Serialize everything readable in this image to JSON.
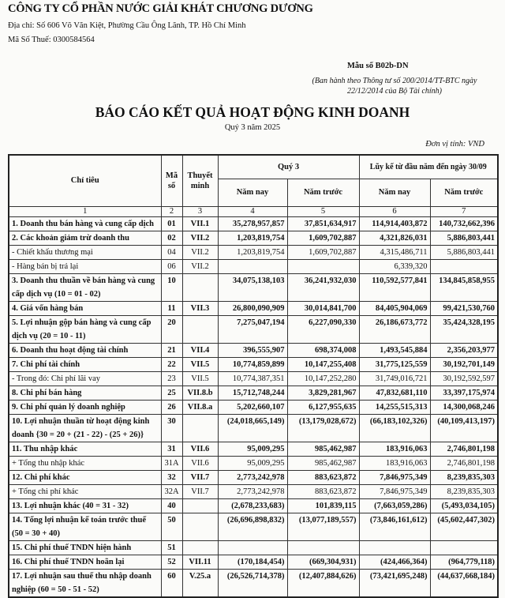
{
  "header": {
    "company": "CÔNG TY CỔ PHẦN NƯỚC GIẢI KHÁT CHƯƠNG DƯƠNG",
    "address": "Địa chỉ:  Số 606 Võ Văn Kiệt, Phường Cầu Ông Lãnh, TP. Hồ Chí Minh",
    "tax_code": "Mã Số Thuế: 0300584564",
    "form_no": "Mẫu số B02b-DN",
    "circular_line1": "(Ban hành theo Thông tư số 200/2014/TT-BTC ngày",
    "circular_line2": "22/12/2014 của Bộ Tài chính)",
    "title": "BÁO CÁO KẾT QUẢ HOẠT ĐỘNG KINH DOANH",
    "period": "Quý 3 năm 2025",
    "unit": "Đơn vị tính: VND"
  },
  "table": {
    "headers": {
      "item": "Chỉ tiêu",
      "code": "Mã số",
      "note": "Thuyết minh",
      "quarter": "Quý 3",
      "ytd": "Lũy kế từ đầu năm đến ngày 30/09",
      "this_year": "Năm nay",
      "last_year": "Năm trước"
    },
    "col_numbers": [
      "1",
      "2",
      "3",
      "4",
      "5",
      "6",
      "7"
    ],
    "rows": [
      {
        "item": "1. Doanh thu bán hàng và cung cấp dịch",
        "code": "01",
        "note": "VII.1",
        "q_now": "35,278,957,857",
        "q_prev": "37,851,634,917",
        "y_now": "114,914,403,872",
        "y_prev": "140,732,662,396",
        "bold": true
      },
      {
        "item": "2. Các khoản giảm trừ doanh thu",
        "code": "02",
        "note": "VII.2",
        "q_now": "1,203,819,754",
        "q_prev": "1,609,702,887",
        "y_now": "4,321,826,031",
        "y_prev": "5,886,803,441",
        "bold": true
      },
      {
        "item": "- Chiết khấu thương mại",
        "code": "04",
        "note": "VII.2",
        "q_now": "1,203,819,754",
        "q_prev": "1,609,702,887",
        "y_now": "4,315,486,711",
        "y_prev": "5,886,803,441",
        "bold": false
      },
      {
        "item": "- Hàng bán bị trả lại",
        "code": "06",
        "note": "VII.2",
        "q_now": "",
        "q_prev": "",
        "y_now": "6,339,320",
        "y_prev": "",
        "bold": false
      },
      {
        "item": "3. Doanh thu thuần về bán hàng và cung cấp dịch vụ (10 = 01 - 02)",
        "code": "10",
        "note": "",
        "q_now": "34,075,138,103",
        "q_prev": "36,241,932,030",
        "y_now": "110,592,577,841",
        "y_prev": "134,845,858,955",
        "bold": true
      },
      {
        "item": "4. Giá vốn hàng bán",
        "code": "11",
        "note": "VII.3",
        "q_now": "26,800,090,909",
        "q_prev": "30,014,841,700",
        "y_now": "84,405,904,069",
        "y_prev": "99,421,530,760",
        "bold": true
      },
      {
        "item": "5. Lợi nhuận gộp bán hàng và cung cấp dịch vụ (20 = 10 - 11)",
        "code": "20",
        "note": "",
        "q_now": "7,275,047,194",
        "q_prev": "6,227,090,330",
        "y_now": "26,186,673,772",
        "y_prev": "35,424,328,195",
        "bold": true
      },
      {
        "item": "6. Doanh thu hoạt động tài chính",
        "code": "21",
        "note": "VII.4",
        "q_now": "396,555,907",
        "q_prev": "698,374,008",
        "y_now": "1,493,545,884",
        "y_prev": "2,356,203,977",
        "bold": true
      },
      {
        "item": "7. Chi phí tài chính",
        "code": "22",
        "note": "VII.5",
        "q_now": "10,774,859,899",
        "q_prev": "10,147,255,408",
        "y_now": "31,775,125,559",
        "y_prev": "30,192,701,149",
        "bold": true
      },
      {
        "item": "- Trong đó: Chi phí lãi vay",
        "code": "23",
        "note": "VII.5",
        "q_now": "10,774,387,351",
        "q_prev": "10,147,252,280",
        "y_now": "31,749,016,721",
        "y_prev": "30,192,592,597",
        "bold": false
      },
      {
        "item": "8. Chi phí bán hàng",
        "code": "25",
        "note": "VII.8.b",
        "q_now": "15,712,748,244",
        "q_prev": "3,829,281,967",
        "y_now": "47,832,681,110",
        "y_prev": "33,397,175,974",
        "bold": true
      },
      {
        "item": "9. Chi phí quản lý doanh nghiệp",
        "code": "26",
        "note": "VII.8.a",
        "q_now": "5,202,660,107",
        "q_prev": "6,127,955,635",
        "y_now": "14,255,515,313",
        "y_prev": "14,300,068,246",
        "bold": true
      },
      {
        "item": "10. Lợi nhuận thuần từ hoạt động kinh doanh {30 = 20 + (21 - 22) - (25 + 26)}",
        "code": "30",
        "note": "",
        "q_now": "(24,018,665,149)",
        "q_prev": "(13,179,028,672)",
        "y_now": "(66,183,102,326)",
        "y_prev": "(40,109,413,197)",
        "bold": true
      },
      {
        "item": "11. Thu nhập khác",
        "code": "31",
        "note": "VII.6",
        "q_now": "95,009,295",
        "q_prev": "985,462,987",
        "y_now": "183,916,063",
        "y_prev": "2,746,801,198",
        "bold": true
      },
      {
        "item": "+ Tổng thu nhập khác",
        "code": "31A",
        "note": "VII.6",
        "q_now": "95,009,295",
        "q_prev": "985,462,987",
        "y_now": "183,916,063",
        "y_prev": "2,746,801,198",
        "bold": false
      },
      {
        "item": "12. Chi phí khác",
        "code": "32",
        "note": "VII.7",
        "q_now": "2,773,242,978",
        "q_prev": "883,623,872",
        "y_now": "7,846,975,349",
        "y_prev": "8,239,835,303",
        "bold": true
      },
      {
        "item": "+ Tổng chi phí khác",
        "code": "32A",
        "note": "VII.7",
        "q_now": "2,773,242,978",
        "q_prev": "883,623,872",
        "y_now": "7,846,975,349",
        "y_prev": "8,239,835,303",
        "bold": false
      },
      {
        "item": "13. Lợi nhuận khác (40 = 31 - 32)",
        "code": "40",
        "note": "",
        "q_now": "(2,678,233,683)",
        "q_prev": "101,839,115",
        "y_now": "(7,663,059,286)",
        "y_prev": "(5,493,034,105)",
        "bold": true
      },
      {
        "item": "14. Tổng lợi nhuận kế toán trước thuế (50 = 30 + 40)",
        "code": "50",
        "note": "",
        "q_now": "(26,696,898,832)",
        "q_prev": "(13,077,189,557)",
        "y_now": "(73,846,161,612)",
        "y_prev": "(45,602,447,302)",
        "bold": true
      },
      {
        "item": "15. Chi phí thuế TNDN hiện hành",
        "code": "51",
        "note": "",
        "q_now": "",
        "q_prev": "",
        "y_now": "",
        "y_prev": "",
        "bold": true
      },
      {
        "item": "16. Chi phí thuế TNDN hoãn lại",
        "code": "52",
        "note": "VII.11",
        "q_now": "(170,184,454)",
        "q_prev": "(669,304,931)",
        "y_now": "(424,466,364)",
        "y_prev": "(964,779,118)",
        "bold": true
      },
      {
        "item": "17. Lợi nhuận sau thuế thu nhập doanh nghiệp (60 = 50 - 51 - 52)",
        "code": "60",
        "note": "V.25.a",
        "q_now": "(26,526,714,378)",
        "q_prev": "(12,407,884,626)",
        "y_now": "(73,421,695,248)",
        "y_prev": "(44,637,668,184)",
        "bold": true
      }
    ]
  }
}
